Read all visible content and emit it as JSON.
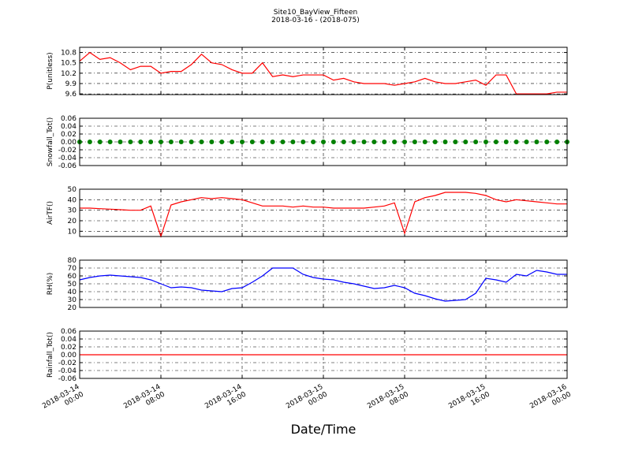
{
  "title": "Site10_BayView_Fifteen",
  "subtitle": "2018-03-16 - (2018-075)",
  "xlabel": "Date/Time",
  "xlim": [
    "2018-03-14 00:00",
    "2018-03-16 00:00"
  ],
  "xticks": [
    "2018-03-14 00:00",
    "2018-03-14 08:00",
    "2018-03-14 16:00",
    "2018-03-15 00:00",
    "2018-03-15 08:00",
    "2018-03-15 16:00",
    "2018-03-16 00:00"
  ],
  "x": [
    "2018-03-14 00:00",
    "2018-03-14 01:00",
    "2018-03-14 02:00",
    "2018-03-14 03:00",
    "2018-03-14 04:00",
    "2018-03-14 05:00",
    "2018-03-14 06:00",
    "2018-03-14 07:00",
    "2018-03-14 08:00",
    "2018-03-14 09:00",
    "2018-03-14 10:00",
    "2018-03-14 11:00",
    "2018-03-14 12:00",
    "2018-03-14 13:00",
    "2018-03-14 14:00",
    "2018-03-14 15:00",
    "2018-03-14 16:00",
    "2018-03-14 17:00",
    "2018-03-14 18:00",
    "2018-03-14 19:00",
    "2018-03-14 20:00",
    "2018-03-14 21:00",
    "2018-03-14 22:00",
    "2018-03-14 23:00",
    "2018-03-15 00:00",
    "2018-03-15 01:00",
    "2018-03-15 02:00",
    "2018-03-15 03:00",
    "2018-03-15 04:00",
    "2018-03-15 05:00",
    "2018-03-15 06:00",
    "2018-03-15 07:00",
    "2018-03-15 08:00",
    "2018-03-15 09:00",
    "2018-03-15 10:00",
    "2018-03-15 11:00",
    "2018-03-15 12:00",
    "2018-03-15 13:00",
    "2018-03-15 14:00",
    "2018-03-15 15:00",
    "2018-03-15 16:00",
    "2018-03-15 17:00",
    "2018-03-15 18:00",
    "2018-03-15 19:00",
    "2018-03-15 20:00",
    "2018-03-15 21:00",
    "2018-03-15 22:00",
    "2018-03-15 23:00",
    "2018-03-16 00:00"
  ],
  "chart_data": [
    {
      "type": "line",
      "ylabel": "P(unitless)",
      "ylim": [
        9.58,
        10.95
      ],
      "yticks": [
        9.6,
        9.9,
        10.2,
        10.5,
        10.8
      ],
      "grid": true,
      "color": "#ff0000",
      "values": [
        10.55,
        10.8,
        10.6,
        10.65,
        10.5,
        10.3,
        10.4,
        10.4,
        10.2,
        10.25,
        10.25,
        10.45,
        10.75,
        10.5,
        10.45,
        10.3,
        10.2,
        10.2,
        10.5,
        10.1,
        10.15,
        10.1,
        10.15,
        10.15,
        10.15,
        10.0,
        10.05,
        9.95,
        9.9,
        9.9,
        9.9,
        9.85,
        9.9,
        9.95,
        10.05,
        9.95,
        9.9,
        9.9,
        9.95,
        10.0,
        9.85,
        10.15,
        10.15,
        9.6,
        9.6,
        9.6,
        9.6,
        9.65,
        9.65
      ]
    },
    {
      "type": "scatter",
      "ylabel": "Snowfall_Tot()",
      "ylim": [
        -0.06,
        0.06
      ],
      "yticks": [
        -0.06,
        -0.04,
        -0.02,
        {
          "value": 0,
          "label": "0.00"
        },
        0.02,
        0.04,
        0.06
      ],
      "grid": true,
      "color": "#008000",
      "values": [
        0,
        0,
        0,
        0,
        0,
        0,
        0,
        0,
        0,
        0,
        0,
        0,
        0,
        0,
        0,
        0,
        0,
        0,
        0,
        0,
        0,
        0,
        0,
        0,
        0,
        0,
        0,
        0,
        0,
        0,
        0,
        0,
        0,
        0,
        0,
        0,
        0,
        0,
        0,
        0,
        0,
        0,
        0,
        0,
        0,
        0,
        0,
        0,
        0
      ]
    },
    {
      "type": "line",
      "ylabel": "AirTF()",
      "ylim": [
        5,
        50
      ],
      "yticks": [
        10,
        20,
        30,
        40,
        50
      ],
      "grid": true,
      "color": "#ff0000",
      "values": [
        32,
        32,
        31.5,
        31,
        30.5,
        30,
        30,
        34,
        5,
        35,
        38,
        40,
        42,
        41,
        42,
        41,
        40,
        37,
        34,
        34,
        34,
        33,
        34,
        33,
        33,
        32,
        32,
        32,
        32,
        33,
        34,
        37,
        8,
        38,
        42,
        44,
        47,
        47,
        47,
        46,
        44,
        40,
        38,
        40,
        39,
        38,
        37,
        36,
        36
      ]
    },
    {
      "type": "line",
      "ylabel": "RH(%)",
      "ylim": [
        20,
        80
      ],
      "yticks": [
        20,
        30,
        40,
        50,
        60,
        70,
        80
      ],
      "grid": true,
      "color": "#0000ff",
      "values": [
        55,
        58,
        60,
        61,
        60,
        59,
        58,
        55,
        50,
        45,
        46,
        45,
        42,
        41,
        40,
        44,
        45,
        52,
        60,
        70,
        70,
        70,
        62,
        58,
        56,
        55,
        52,
        50,
        47,
        44,
        45,
        48,
        45,
        38,
        35,
        31,
        28,
        29,
        30,
        38,
        57,
        55,
        52,
        62,
        60,
        67,
        65,
        62,
        62
      ]
    },
    {
      "type": "line",
      "ylabel": "Rainfall_Tot()",
      "ylim": [
        -0.06,
        0.06
      ],
      "yticks": [
        -0.06,
        -0.04,
        -0.02,
        {
          "value": 0,
          "label": "0.00"
        },
        0.02,
        0.04,
        0.06
      ],
      "grid": true,
      "color": "#ff0000",
      "values": [
        0,
        0,
        0,
        0,
        0,
        0,
        0,
        0,
        0,
        0,
        0,
        0,
        0,
        0,
        0,
        0,
        0,
        0,
        0,
        0,
        0,
        0,
        0,
        0,
        0,
        0,
        0,
        0,
        0,
        0,
        0,
        0,
        0,
        0,
        0,
        0,
        0,
        0,
        0,
        0,
        0,
        0,
        0,
        0,
        0,
        0,
        0,
        0,
        0
      ]
    }
  ]
}
